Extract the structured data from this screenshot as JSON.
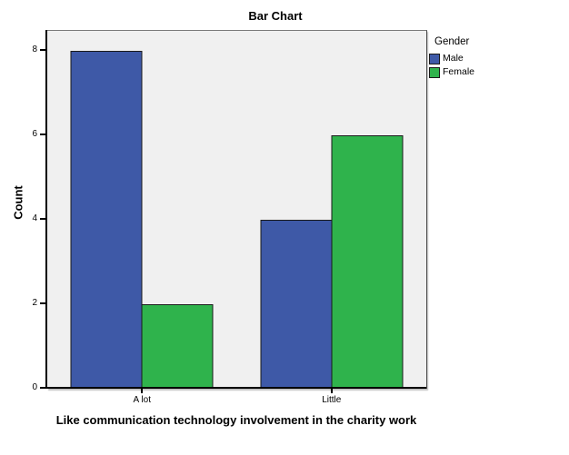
{
  "chart_data": {
    "type": "bar",
    "title": "Bar Chart",
    "categories": [
      "A lot",
      "Little"
    ],
    "series": [
      {
        "name": "Male",
        "color": "#3E59A7",
        "values": [
          8,
          4
        ]
      },
      {
        "name": "Female",
        "color": "#2FB34C",
        "values": [
          2,
          6
        ]
      }
    ],
    "xlabel": "Like communication technology involvement in the charity work",
    "ylabel": "Count",
    "yticks": [
      0,
      2,
      4,
      6,
      8
    ],
    "ylim": [
      0,
      8.47
    ],
    "legend": {
      "title": "Gender",
      "position": "top-right-outside"
    },
    "grid": false,
    "plot_background": "#F0F0F0",
    "axis_color": "#000000",
    "frame_color": "#4A4A4A"
  }
}
